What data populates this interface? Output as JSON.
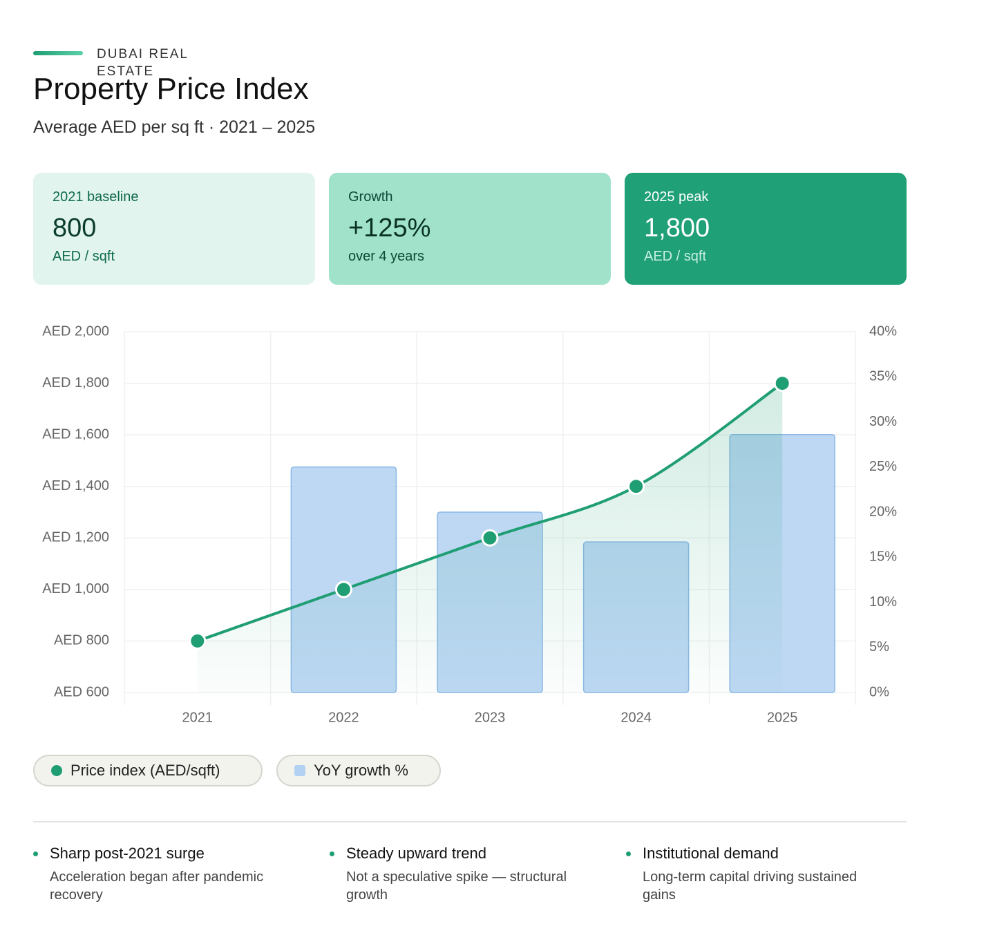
{
  "header": {
    "eyebrow": "DUBAI REAL ESTATE",
    "title": "Property Price Index",
    "subtitle": "Average AED per sq ft · 2021 – 2025"
  },
  "kpis": [
    {
      "label": "2021 baseline",
      "value": "800",
      "unit": "AED / sqft"
    },
    {
      "label": "Growth",
      "value": "+125%",
      "unit": "over 4 years"
    },
    {
      "label": "2025 peak",
      "value": "1,800",
      "unit": "AED / sqft"
    }
  ],
  "chart_data": {
    "type": "bar-line",
    "categories": [
      "2021",
      "2022",
      "2023",
      "2024",
      "2025"
    ],
    "series": [
      {
        "name": "Price index (AED/sqft)",
        "type": "line",
        "color": "#1f9e74",
        "values": [
          800,
          1000,
          1200,
          1400,
          1800
        ]
      },
      {
        "name": "YoY growth %",
        "type": "bar",
        "axis": "y2",
        "color": "#b3d1f2",
        "values": [
          null,
          25,
          20,
          16.7,
          28.6
        ]
      }
    ],
    "ylim": [
      600,
      2000
    ],
    "yticks": [
      {
        "value": 600,
        "label": "AED 600"
      },
      {
        "value": 800,
        "label": "AED 800"
      },
      {
        "value": 1000,
        "label": "AED 1,000"
      },
      {
        "value": 1200,
        "label": "AED 1,200"
      },
      {
        "value": 1400,
        "label": "AED 1,400"
      },
      {
        "value": 1600,
        "label": "AED 1,600"
      },
      {
        "value": 1800,
        "label": "AED 1,800"
      },
      {
        "value": 2000,
        "label": "AED 2,000"
      }
    ],
    "y2lim": [
      0,
      40
    ],
    "y2ticks": [
      {
        "value": 0,
        "label": "0%"
      },
      {
        "value": 5,
        "label": "5%"
      },
      {
        "value": 10,
        "label": "10%"
      },
      {
        "value": 15,
        "label": "15%"
      },
      {
        "value": 20,
        "label": "20%"
      },
      {
        "value": 25,
        "label": "25%"
      },
      {
        "value": 30,
        "label": "30%"
      },
      {
        "value": 35,
        "label": "35%"
      },
      {
        "value": 40,
        "label": "40%"
      }
    ],
    "grid": true
  },
  "insights": [
    {
      "title": "Sharp post-2021 surge",
      "text": "Acceleration began after pandemic recovery"
    },
    {
      "title": "Steady upward trend",
      "text": "Not a speculative spike — structural growth"
    },
    {
      "title": "Institutional demand",
      "text": "Long-term capital driving sustained gains"
    }
  ]
}
